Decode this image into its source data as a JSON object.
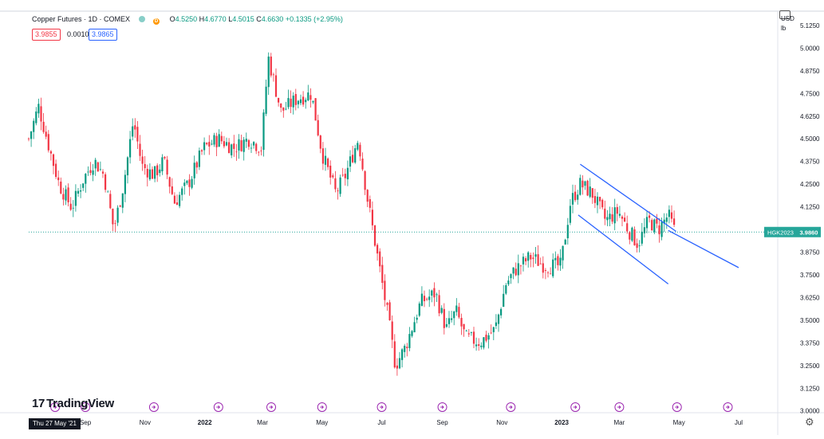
{
  "header": {
    "title": "Copper Futures · 1D · COMEX",
    "ohlc": [
      {
        "label": "O",
        "value": "4.5250"
      },
      {
        "label": "H",
        "value": "4.6770"
      },
      {
        "label": "L",
        "value": "4.5015"
      },
      {
        "label": "C",
        "value": "4.6630"
      }
    ],
    "change": "+0.1335 (+2.95%)",
    "bid": "3.9855",
    "spread": "0.0010",
    "ask": "3.9865"
  },
  "axis_header": {
    "currency": "USD",
    "unit": "lb"
  },
  "last_price": {
    "symbol": "HGK2023",
    "value": "3.9860",
    "price": 3.986
  },
  "crosshair_date": "Thu 27 May '21",
  "brand": "TradingView",
  "colors": {
    "up": "#089981",
    "down": "#f23645",
    "trendline": "#2962ff",
    "last": "#26a69a"
  },
  "icons": [
    "tradingview-logo-icon",
    "camera-icon",
    "settings-gear-icon",
    "earnings-marker-icon",
    "dividend-marker-icon"
  ],
  "chart_data": {
    "type": "candlestick",
    "title": "Copper Futures · 1D · COMEX",
    "x_tick_labels": [
      "Sep",
      "Nov",
      "2022",
      "Mar",
      "May",
      "Jul",
      "Sep",
      "Nov",
      "2023",
      "Mar",
      "May",
      "Jul"
    ],
    "y_tick_labels": [
      "5.1250",
      "5.0000",
      "4.8750",
      "4.7500",
      "4.6250",
      "4.5000",
      "4.3750",
      "4.2500",
      "4.1250",
      "3.8750",
      "3.7500",
      "3.6250",
      "3.5000",
      "3.3750",
      "3.2500",
      "3.1250",
      "3.0000"
    ],
    "ylim": [
      2.99,
      5.16
    ],
    "xlim": [
      "2021-07-05",
      "2023-08-10"
    ],
    "grid": false,
    "price_path": [
      [
        "2021-07-05",
        4.5
      ],
      [
        "2021-07-15",
        4.68
      ],
      [
        "2021-07-26",
        4.45
      ],
      [
        "2021-08-05",
        4.25
      ],
      [
        "2021-08-18",
        4.12
      ],
      [
        "2021-08-30",
        4.28
      ],
      [
        "2021-09-10",
        4.38
      ],
      [
        "2021-09-20",
        4.3
      ],
      [
        "2021-09-30",
        4.0
      ],
      [
        "2021-10-10",
        4.25
      ],
      [
        "2021-10-20",
        4.6
      ],
      [
        "2021-10-29",
        4.35
      ],
      [
        "2021-11-10",
        4.3
      ],
      [
        "2021-11-20",
        4.38
      ],
      [
        "2021-12-01",
        4.15
      ],
      [
        "2021-12-15",
        4.25
      ],
      [
        "2021-12-31",
        4.45
      ],
      [
        "2022-01-15",
        4.5
      ],
      [
        "2022-01-31",
        4.45
      ],
      [
        "2022-02-15",
        4.5
      ],
      [
        "2022-02-28",
        4.45
      ],
      [
        "2022-03-07",
        4.95
      ],
      [
        "2022-03-20",
        4.65
      ],
      [
        "2022-04-05",
        4.72
      ],
      [
        "2022-04-20",
        4.75
      ],
      [
        "2022-05-01",
        4.42
      ],
      [
        "2022-05-15",
        4.2
      ],
      [
        "2022-05-25",
        4.3
      ],
      [
        "2022-06-07",
        4.5
      ],
      [
        "2022-06-17",
        4.15
      ],
      [
        "2022-06-30",
        3.75
      ],
      [
        "2022-07-08",
        3.5
      ],
      [
        "2022-07-15",
        3.25
      ],
      [
        "2022-07-25",
        3.35
      ],
      [
        "2022-08-10",
        3.6
      ],
      [
        "2022-08-25",
        3.65
      ],
      [
        "2022-09-05",
        3.45
      ],
      [
        "2022-09-15",
        3.55
      ],
      [
        "2022-09-25",
        3.4
      ],
      [
        "2022-10-10",
        3.38
      ],
      [
        "2022-10-25",
        3.45
      ],
      [
        "2022-11-05",
        3.7
      ],
      [
        "2022-11-15",
        3.78
      ],
      [
        "2022-11-30",
        3.85
      ],
      [
        "2022-12-15",
        3.8
      ],
      [
        "2022-12-31",
        3.8
      ],
      [
        "2023-01-10",
        4.15
      ],
      [
        "2023-01-20",
        4.25
      ],
      [
        "2023-02-01",
        4.2
      ],
      [
        "2023-02-15",
        4.05
      ],
      [
        "2023-02-28",
        4.1
      ],
      [
        "2023-03-10",
        4.0
      ],
      [
        "2023-03-20",
        3.92
      ],
      [
        "2023-03-31",
        4.05
      ],
      [
        "2023-04-10",
        4.0
      ],
      [
        "2023-04-20",
        4.08
      ],
      [
        "2023-04-27",
        3.986
      ]
    ],
    "last_price": 3.986,
    "annotations": {
      "trendlines": [
        {
          "from": [
            "2023-01-20",
            4.36
          ],
          "to": [
            "2023-04-28",
            3.99
          ]
        },
        {
          "from": [
            "2023-01-18",
            4.08
          ],
          "to": [
            "2023-04-20",
            3.7
          ]
        },
        {
          "from": [
            "2023-04-20",
            3.995
          ],
          "to": [
            "2023-07-01",
            3.79
          ]
        }
      ],
      "event_markers": [
        "2021-08-01",
        "2021-09-01",
        "2021-11-10",
        "2022-01-15",
        "2022-03-10",
        "2022-05-01",
        "2022-07-01",
        "2022-09-01",
        "2022-11-10",
        "2023-01-15",
        "2023-03-01",
        "2023-04-29",
        "2023-06-20"
      ]
    }
  }
}
